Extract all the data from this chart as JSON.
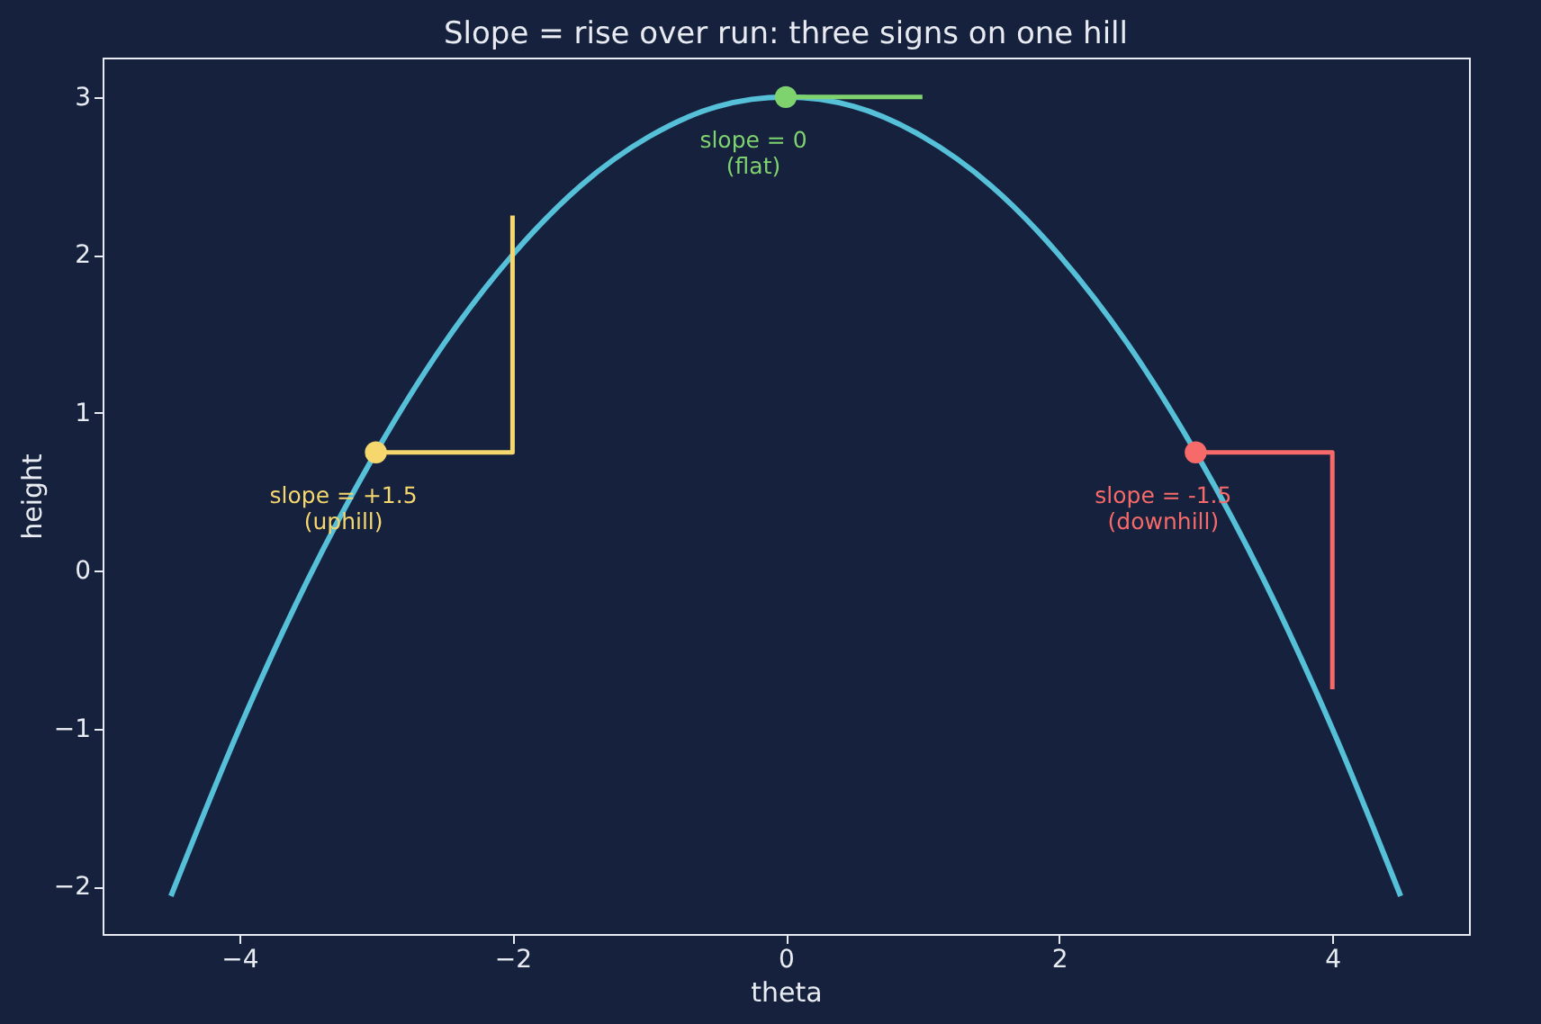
{
  "chart_data": {
    "type": "line",
    "title": "Slope = rise over run: three signs on one hill",
    "xlabel": "theta",
    "ylabel": "height",
    "xlim": [
      -5,
      5
    ],
    "ylim": [
      -2.3,
      3.25
    ],
    "xticks": [
      -4,
      -2,
      0,
      2,
      4
    ],
    "yticks": [
      -2,
      -1,
      0,
      1,
      2,
      3
    ],
    "grid": false,
    "series": [
      {
        "color": "#56c0d8",
        "x": [
          -4.5,
          -4,
          -3.5,
          -3,
          -2.5,
          -2,
          -1.5,
          -1,
          -0.5,
          0,
          0.5,
          1,
          1.5,
          2,
          2.5,
          3,
          3.5,
          4,
          4.5
        ],
        "values": [
          -2.06,
          -1,
          -0.06,
          0.75,
          1.44,
          2,
          2.44,
          2.75,
          2.94,
          3,
          2.94,
          2.75,
          2.44,
          2,
          1.44,
          0.75,
          -0.06,
          -1,
          -2.06
        ]
      },
      {
        "color": "#f5d76e",
        "x": [
          -3,
          -2,
          -2
        ],
        "values": [
          0.75,
          0.75,
          2.25
        ]
      },
      {
        "color": "#7fd36e",
        "x": [
          0,
          1
        ],
        "values": [
          3,
          3
        ]
      },
      {
        "color": "#f76a6a",
        "x": [
          3,
          4,
          4
        ],
        "values": [
          0.75,
          0.75,
          -0.75
        ]
      },
      {
        "type": "scatter",
        "colors": [
          "#f5d76e",
          "#7fd36e",
          "#f76a6a"
        ],
        "x": [
          -3,
          0,
          3
        ],
        "values": [
          0.75,
          3,
          0.75
        ]
      }
    ],
    "annotations": [
      "slope = +1.5\n(uphill)",
      "slope = 0\n(flat)",
      "slope = -1.5\n(downhill)"
    ]
  }
}
